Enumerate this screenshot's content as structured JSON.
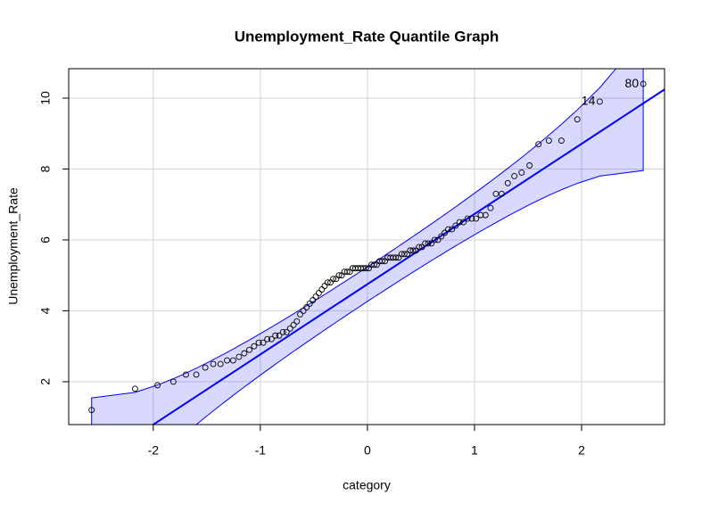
{
  "chart_data": {
    "type": "qq",
    "title": "Unemployment_Rate Quantile Graph",
    "x_label": "category",
    "y_label": "Unemployment_Rate",
    "x": [
      -2.576,
      -2.17,
      -1.96,
      -1.812,
      -1.695,
      -1.598,
      -1.514,
      -1.44,
      -1.372,
      -1.311,
      -1.254,
      -1.2,
      -1.15,
      -1.103,
      -1.058,
      -1.015,
      -0.974,
      -0.935,
      -0.896,
      -0.86,
      -0.824,
      -0.789,
      -0.755,
      -0.722,
      -0.69,
      -0.659,
      -0.628,
      -0.598,
      -0.568,
      -0.539,
      -0.51,
      -0.482,
      -0.454,
      -0.426,
      -0.399,
      -0.372,
      -0.345,
      -0.319,
      -0.292,
      -0.266,
      -0.24,
      -0.215,
      -0.189,
      -0.164,
      -0.138,
      -0.113,
      -0.088,
      -0.063,
      -0.038,
      -0.013,
      0.013,
      0.038,
      0.063,
      0.088,
      0.113,
      0.138,
      0.164,
      0.189,
      0.215,
      0.24,
      0.266,
      0.292,
      0.319,
      0.345,
      0.372,
      0.399,
      0.426,
      0.454,
      0.482,
      0.51,
      0.539,
      0.568,
      0.598,
      0.628,
      0.659,
      0.69,
      0.722,
      0.755,
      0.789,
      0.824,
      0.86,
      0.896,
      0.935,
      0.974,
      1.015,
      1.058,
      1.103,
      1.15,
      1.2,
      1.254,
      1.311,
      1.372,
      1.44,
      1.514,
      1.598,
      1.695,
      1.812,
      1.96,
      2.17,
      2.576
    ],
    "values": [
      1.2,
      1.8,
      1.9,
      2.0,
      2.2,
      2.2,
      2.4,
      2.5,
      2.5,
      2.6,
      2.6,
      2.7,
      2.8,
      2.9,
      3.0,
      3.1,
      3.1,
      3.2,
      3.2,
      3.3,
      3.3,
      3.4,
      3.4,
      3.5,
      3.6,
      3.7,
      3.9,
      4.0,
      4.1,
      4.2,
      4.3,
      4.4,
      4.5,
      4.6,
      4.7,
      4.8,
      4.8,
      4.9,
      4.9,
      5.0,
      5.0,
      5.1,
      5.1,
      5.1,
      5.2,
      5.2,
      5.2,
      5.2,
      5.2,
      5.2,
      5.2,
      5.3,
      5.3,
      5.3,
      5.4,
      5.4,
      5.4,
      5.5,
      5.5,
      5.5,
      5.5,
      5.5,
      5.6,
      5.6,
      5.6,
      5.7,
      5.7,
      5.7,
      5.8,
      5.8,
      5.9,
      5.9,
      5.9,
      6.0,
      6.0,
      6.1,
      6.2,
      6.3,
      6.3,
      6.4,
      6.5,
      6.5,
      6.6,
      6.6,
      6.6,
      6.7,
      6.7,
      6.9,
      7.3,
      7.3,
      7.6,
      7.8,
      7.9,
      8.1,
      8.7,
      8.8,
      8.8,
      9.4,
      9.9,
      10.4
    ],
    "point_labels": [
      null,
      null,
      null,
      null,
      null,
      null,
      null,
      null,
      null,
      null,
      null,
      null,
      null,
      null,
      null,
      null,
      null,
      null,
      null,
      null,
      null,
      null,
      null,
      null,
      null,
      null,
      null,
      null,
      null,
      null,
      null,
      null,
      null,
      null,
      null,
      null,
      null,
      null,
      null,
      null,
      null,
      null,
      null,
      null,
      null,
      null,
      null,
      null,
      null,
      null,
      null,
      null,
      null,
      null,
      null,
      null,
      null,
      null,
      null,
      null,
      null,
      null,
      null,
      null,
      null,
      null,
      null,
      null,
      null,
      null,
      null,
      null,
      null,
      null,
      null,
      null,
      null,
      null,
      null,
      null,
      null,
      null,
      null,
      null,
      null,
      null,
      null,
      null,
      null,
      null,
      null,
      null,
      null,
      null,
      null,
      null,
      null,
      null,
      14,
      80
    ],
    "reference_line": {
      "intercept": 4.75,
      "slope": 1.98,
      "color": "#0000ff"
    },
    "envelope_level": 0.95,
    "envelope_color": "#0000ff",
    "point_color": "#000000",
    "xlim": [
      -2.79,
      2.775
    ],
    "ylim": [
      0.79,
      10.83
    ],
    "xticks": [
      -2,
      -1,
      0,
      1,
      2
    ],
    "yticks": [
      2,
      4,
      6,
      8,
      10
    ],
    "grid": true
  }
}
